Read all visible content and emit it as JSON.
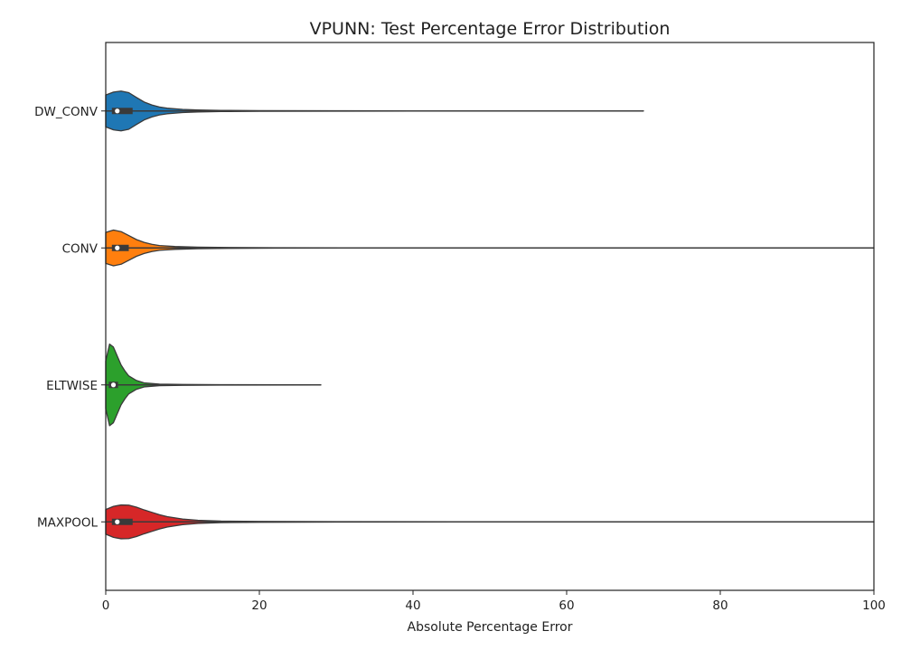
{
  "chart_data": {
    "type": "violin",
    "orientation": "horizontal",
    "title": "VPUNN: Test Percentage Error Distribution",
    "xlabel": "Absolute Percentage Error",
    "ylabel": "",
    "xlim": [
      0,
      100
    ],
    "xticks": [
      0,
      20,
      40,
      60,
      80,
      100
    ],
    "grid": false,
    "legend": "none",
    "categories": [
      "DW_CONV",
      "CONV",
      "ELTWISE",
      "MAXPOOL"
    ],
    "series": [
      {
        "category": "DW_CONV",
        "color": "#1f77b4",
        "min": 0,
        "q1": 0.8,
        "median": 1.5,
        "q3": 3.5,
        "max": 70,
        "density": [
          [
            0,
            0.8
          ],
          [
            1,
            0.95
          ],
          [
            2,
            1.0
          ],
          [
            3,
            0.92
          ],
          [
            4,
            0.68
          ],
          [
            5,
            0.45
          ],
          [
            6,
            0.3
          ],
          [
            7,
            0.2
          ],
          [
            8,
            0.14
          ],
          [
            10,
            0.08
          ],
          [
            12,
            0.05
          ],
          [
            15,
            0.03
          ],
          [
            20,
            0.015
          ],
          [
            30,
            0.008
          ],
          [
            40,
            0.005
          ],
          [
            55,
            0.003
          ],
          [
            70,
            0.002
          ]
        ]
      },
      {
        "category": "CONV",
        "color": "#ff7f0e",
        "min": 0,
        "q1": 0.8,
        "median": 1.5,
        "q3": 3.0,
        "max": 100,
        "density": [
          [
            0,
            0.78
          ],
          [
            1,
            0.9
          ],
          [
            2,
            0.82
          ],
          [
            3,
            0.62
          ],
          [
            4,
            0.42
          ],
          [
            5,
            0.28
          ],
          [
            6,
            0.18
          ],
          [
            7,
            0.12
          ],
          [
            9,
            0.07
          ],
          [
            12,
            0.04
          ],
          [
            16,
            0.02
          ],
          [
            22,
            0.01
          ],
          [
            35,
            0.005
          ],
          [
            60,
            0.003
          ],
          [
            100,
            0.002
          ]
        ]
      },
      {
        "category": "ELTWISE",
        "color": "#2ca02c",
        "min": 0,
        "q1": 0.4,
        "median": 1.0,
        "q3": 1.6,
        "max": 28,
        "density": [
          [
            0,
            1.2
          ],
          [
            0.5,
            2.05
          ],
          [
            1,
            1.9
          ],
          [
            1.5,
            1.45
          ],
          [
            2,
            1.0
          ],
          [
            2.5,
            0.7
          ],
          [
            3,
            0.45
          ],
          [
            4,
            0.22
          ],
          [
            5,
            0.1
          ],
          [
            7,
            0.04
          ],
          [
            10,
            0.02
          ],
          [
            15,
            0.01
          ],
          [
            28,
            0.004
          ]
        ]
      },
      {
        "category": "MAXPOOL",
        "color": "#d62728",
        "min": 0,
        "q1": 0.8,
        "median": 1.5,
        "q3": 3.5,
        "max": 100,
        "density": [
          [
            0,
            0.62
          ],
          [
            1,
            0.78
          ],
          [
            2,
            0.85
          ],
          [
            3,
            0.84
          ],
          [
            4,
            0.74
          ],
          [
            5,
            0.6
          ],
          [
            6,
            0.48
          ],
          [
            7,
            0.36
          ],
          [
            8,
            0.26
          ],
          [
            10,
            0.14
          ],
          [
            12,
            0.08
          ],
          [
            15,
            0.04
          ],
          [
            20,
            0.02
          ],
          [
            30,
            0.01
          ],
          [
            50,
            0.005
          ],
          [
            100,
            0.002
          ]
        ]
      }
    ]
  }
}
